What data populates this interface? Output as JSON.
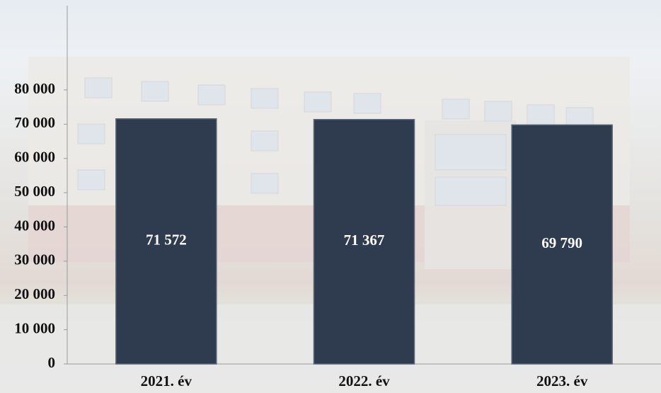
{
  "chart_data": {
    "type": "bar",
    "categories": [
      "2021. év",
      "2022. év",
      "2023. év"
    ],
    "values": [
      71572,
      71367,
      69790
    ],
    "value_labels": [
      "71 572",
      "71 367",
      "69 790"
    ],
    "color": "#2f3b4f",
    "ylim": [
      0,
      80000
    ],
    "yticks": [
      0,
      {
        "value": 10000,
        "label": "10 000"
      },
      {
        "value": 20000,
        "label": "20 000"
      },
      {
        "value": 30000,
        "label": "30 000"
      },
      {
        "value": 40000,
        "label": "40 000"
      },
      {
        "value": 50000,
        "label": "50 000"
      },
      {
        "value": 60000,
        "label": "60 000"
      },
      {
        "value": 70000,
        "label": "70 000"
      },
      {
        "value": 80000,
        "label": "80 000"
      }
    ],
    "grid": false
  }
}
